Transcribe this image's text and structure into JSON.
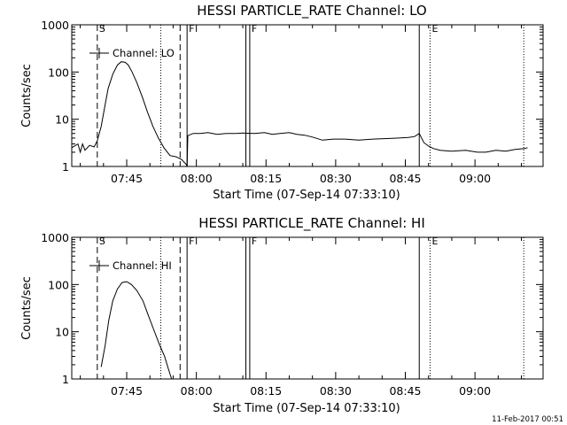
{
  "footer": {
    "date_stamp": "11-Feb-2017 00:51"
  },
  "chart_data": [
    {
      "type": "line",
      "title": "HESSI PARTICLE_RATE Channel: LO",
      "xlabel": "Start Time (07-Sep-14 07:33:10)",
      "ylabel": "Counts/sec",
      "y_scale": "log",
      "ylim": [
        1,
        1000
      ],
      "xlim": [
        "07:33:10",
        "09:14:40"
      ],
      "x_tick_labels": [
        "07:45",
        "08:00",
        "08:15",
        "08:30",
        "08:45",
        "09:00"
      ],
      "y_tick_labels": [
        "1",
        "10",
        "100",
        "1000"
      ],
      "legend": {
        "label": "Channel: LO",
        "position": "top-left"
      },
      "event_markers": [
        {
          "time": "07:38:40",
          "style": "dashed",
          "label": "S"
        },
        {
          "time": "07:52:20",
          "style": "dotted",
          "label": ""
        },
        {
          "time": "07:56:30",
          "style": "dashed",
          "label": ""
        },
        {
          "time": "07:58:00",
          "style": "solid",
          "label": "F"
        },
        {
          "time": "08:10:40",
          "style": "solid",
          "label": ""
        },
        {
          "time": "08:11:30",
          "style": "solid",
          "label": "F"
        },
        {
          "time": "08:48:00",
          "style": "solid",
          "label": ""
        },
        {
          "time": "08:50:20",
          "style": "dotted",
          "label": "E"
        },
        {
          "time": "09:10:30",
          "style": "dotted",
          "label": ""
        }
      ],
      "series": [
        {
          "x": [
            "07:33:10",
            "07:34:30",
            "07:35:00",
            "07:35:30",
            "07:36:00",
            "07:37:00",
            "07:38:00",
            "07:38:40",
            "07:39:30",
            "07:40:20",
            "07:41:00",
            "07:42:00",
            "07:43:00",
            "07:43:50",
            "07:44:40",
            "07:45:20",
            "07:46:10",
            "07:47:10",
            "07:48:20",
            "07:49:30",
            "07:50:40",
            "07:51:50",
            "07:53:00",
            "07:54:20",
            "07:55:40",
            "07:56:50",
            "07:57:50",
            "07:58:00",
            "07:58:10",
            "07:59:20",
            "08:00:50",
            "08:02:30",
            "08:04:30",
            "08:06:30",
            "08:08:30",
            "08:10:00",
            "08:12:30",
            "08:14:40",
            "08:16:20",
            "08:18:00",
            "08:20:00",
            "08:21:40",
            "08:23:20",
            "08:25:00",
            "08:27:10",
            "08:29:30",
            "08:32:00",
            "08:35:00",
            "08:38:00",
            "08:41:00",
            "08:43:40",
            "08:45:40",
            "08:47:00",
            "08:48:00",
            "08:49:00",
            "08:50:00",
            "08:51:00",
            "08:52:30",
            "08:55:00",
            "08:58:00",
            "09:00:30",
            "09:02:20",
            "09:04:30",
            "09:06:40",
            "09:08:40",
            "09:10:40",
            "09:11:20"
          ],
          "y": [
            2.5,
            3,
            2,
            3,
            2.2,
            2.8,
            2.6,
            3.5,
            7,
            20,
            45,
            90,
            140,
            165,
            160,
            140,
            100,
            60,
            30,
            14,
            7,
            4,
            2.5,
            1.7,
            1.6,
            1.4,
            1.1,
            1,
            4.5,
            5,
            5,
            5.2,
            4.8,
            5,
            5,
            5.1,
            5,
            5.2,
            4.8,
            5,
            5.2,
            4.8,
            4.6,
            4.2,
            3.6,
            3.8,
            3.8,
            3.6,
            3.8,
            3.9,
            4,
            4.1,
            4.3,
            5,
            3.2,
            2.7,
            2.4,
            2.2,
            2.1,
            2.2,
            2,
            2,
            2.2,
            2.1,
            2.3,
            2.4,
            2.5
          ]
        }
      ]
    },
    {
      "type": "line",
      "title": "HESSI PARTICLE_RATE Channel: HI",
      "xlabel": "Start Time (07-Sep-14 07:33:10)",
      "ylabel": "Counts/sec",
      "y_scale": "log",
      "ylim": [
        1,
        1000
      ],
      "xlim": [
        "07:33:10",
        "09:14:40"
      ],
      "x_tick_labels": [
        "07:45",
        "08:00",
        "08:15",
        "08:30",
        "08:45",
        "09:00"
      ],
      "y_tick_labels": [
        "1",
        "10",
        "100",
        "1000"
      ],
      "legend": {
        "label": "Channel: HI",
        "position": "top-left"
      },
      "event_markers": [
        {
          "time": "07:38:40",
          "style": "dashed",
          "label": "S"
        },
        {
          "time": "07:52:20",
          "style": "dotted",
          "label": ""
        },
        {
          "time": "07:56:30",
          "style": "dashed",
          "label": ""
        },
        {
          "time": "07:58:00",
          "style": "solid",
          "label": "F"
        },
        {
          "time": "08:10:40",
          "style": "solid",
          "label": ""
        },
        {
          "time": "08:11:30",
          "style": "solid",
          "label": "F"
        },
        {
          "time": "08:48:00",
          "style": "solid",
          "label": ""
        },
        {
          "time": "08:50:20",
          "style": "dotted",
          "label": "E"
        },
        {
          "time": "09:10:30",
          "style": "dotted",
          "label": ""
        }
      ],
      "series": [
        {
          "x": [
            "07:39:30",
            "07:40:20",
            "07:41:10",
            "07:42:00",
            "07:43:00",
            "07:44:00",
            "07:45:00",
            "07:46:00",
            "07:47:10",
            "07:48:30",
            "07:49:40",
            "07:50:50",
            "07:52:00",
            "07:53:10",
            "07:54:00",
            "07:54:40"
          ],
          "y": [
            1.8,
            5,
            18,
            45,
            80,
            110,
            115,
            100,
            75,
            45,
            22,
            11,
            5.5,
            3,
            1.6,
            1
          ]
        }
      ]
    }
  ]
}
